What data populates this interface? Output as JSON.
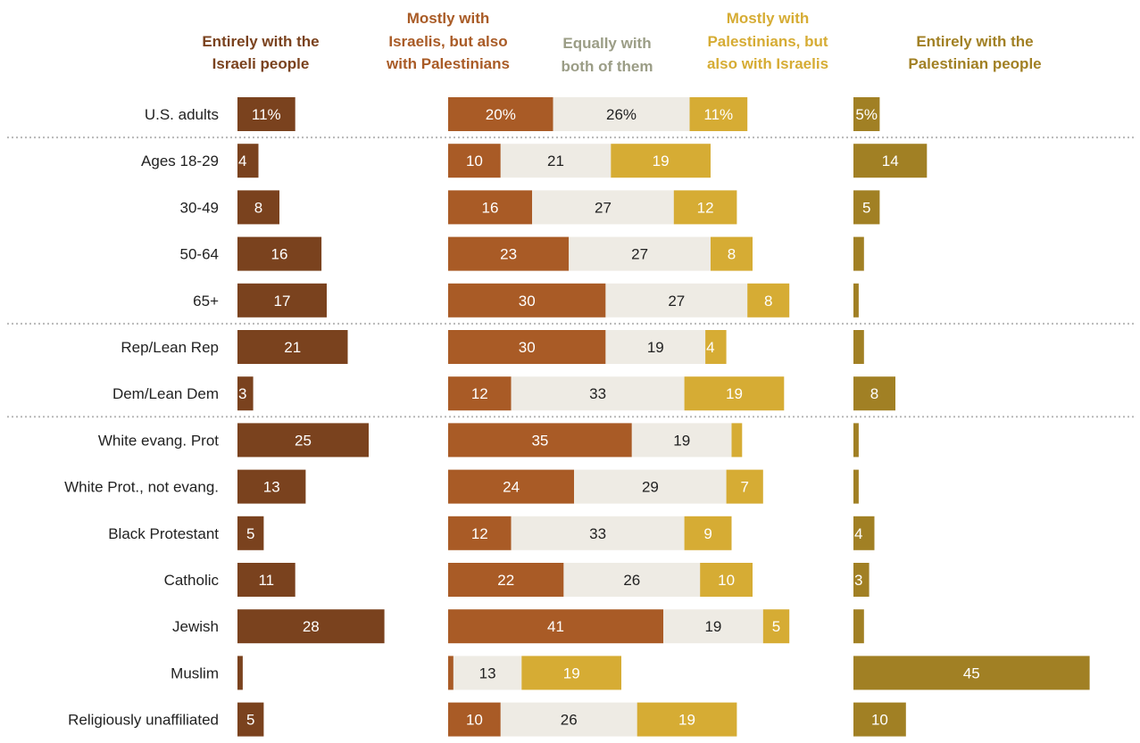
{
  "chart_data": {
    "type": "bar",
    "stacked_groups": true,
    "headers": [
      {
        "key": "entirely_israeli",
        "lines": [
          "Entirely with the",
          "Israeli people"
        ]
      },
      {
        "key": "mostly_israeli",
        "lines": [
          "Mostly with",
          "Israelis, but also",
          "with Palestinians"
        ]
      },
      {
        "key": "equally",
        "lines": [
          "Equally with",
          "both of them"
        ]
      },
      {
        "key": "mostly_palestinian",
        "lines": [
          "Mostly with",
          "Palestinians, but",
          "also with Israelis"
        ]
      },
      {
        "key": "entirely_palestinian",
        "lines": [
          "Entirely with the",
          "Palestinian people"
        ]
      }
    ],
    "categories": [
      "U.S. adults",
      "Ages 18-29",
      "30-49",
      "50-64",
      "65+",
      "Rep/Lean Rep",
      "Dem/Lean Dem",
      "White evang. Prot",
      "White Prot., not evang.",
      "Black Protestant",
      "Catholic",
      "Jewish",
      "Muslim",
      "Religiously unaffiliated"
    ],
    "separators_after": [
      "U.S. adults",
      "65+",
      "Dem/Lean Dem"
    ],
    "series": [
      {
        "key": "entirely_israeli",
        "values": [
          11,
          4,
          8,
          16,
          17,
          21,
          3,
          25,
          13,
          5,
          11,
          28,
          1,
          5
        ],
        "labels": [
          "11%",
          "4",
          "8",
          "16",
          "17",
          "21",
          "3",
          "25",
          "13",
          "5",
          "11",
          "28",
          "",
          "5"
        ]
      },
      {
        "key": "mostly_israeli",
        "values": [
          20,
          10,
          16,
          23,
          30,
          30,
          12,
          35,
          24,
          12,
          22,
          41,
          1,
          10
        ],
        "labels": [
          "20%",
          "10",
          "16",
          "23",
          "30",
          "30",
          "12",
          "35",
          "24",
          "12",
          "22",
          "41",
          "",
          "10"
        ]
      },
      {
        "key": "equally",
        "values": [
          26,
          21,
          27,
          27,
          27,
          19,
          33,
          19,
          29,
          33,
          26,
          19,
          13,
          26
        ],
        "labels": [
          "26%",
          "21",
          "27",
          "27",
          "27",
          "19",
          "33",
          "19",
          "29",
          "33",
          "26",
          "19",
          "13",
          "26"
        ]
      },
      {
        "key": "mostly_palestinian",
        "values": [
          11,
          19,
          12,
          8,
          8,
          4,
          19,
          2,
          7,
          9,
          10,
          5,
          19,
          19
        ],
        "labels": [
          "11%",
          "19",
          "12",
          "8",
          "8",
          "4",
          "19",
          "",
          "7",
          "9",
          "10",
          "5",
          "19",
          "19"
        ]
      },
      {
        "key": "entirely_palestinian",
        "values": [
          5,
          14,
          5,
          2,
          1,
          2,
          8,
          1,
          1,
          4,
          3,
          2,
          45,
          10
        ],
        "labels": [
          "5%",
          "14",
          "5",
          "",
          "",
          "",
          "8",
          "",
          "",
          "4",
          "3",
          "",
          "45",
          "10"
        ]
      }
    ],
    "colors": {
      "entirely_israeli": "#7a421e",
      "mostly_israeli": "#a95b26",
      "equally": "#eeebe4",
      "mostly_palestinian": "#d6ac34",
      "entirely_palestinian": "#a18024",
      "header_entirely_israeli": "#7a421e",
      "header_mostly_israeli": "#a95b26",
      "header_equally": "#9b9d86",
      "header_mostly_palestinian": "#d6ac34",
      "header_entirely_palestinian": "#a18024",
      "label_on_dark": "#ffffff",
      "label_on_light": "#222222",
      "separator": "#b8b8b8"
    }
  }
}
